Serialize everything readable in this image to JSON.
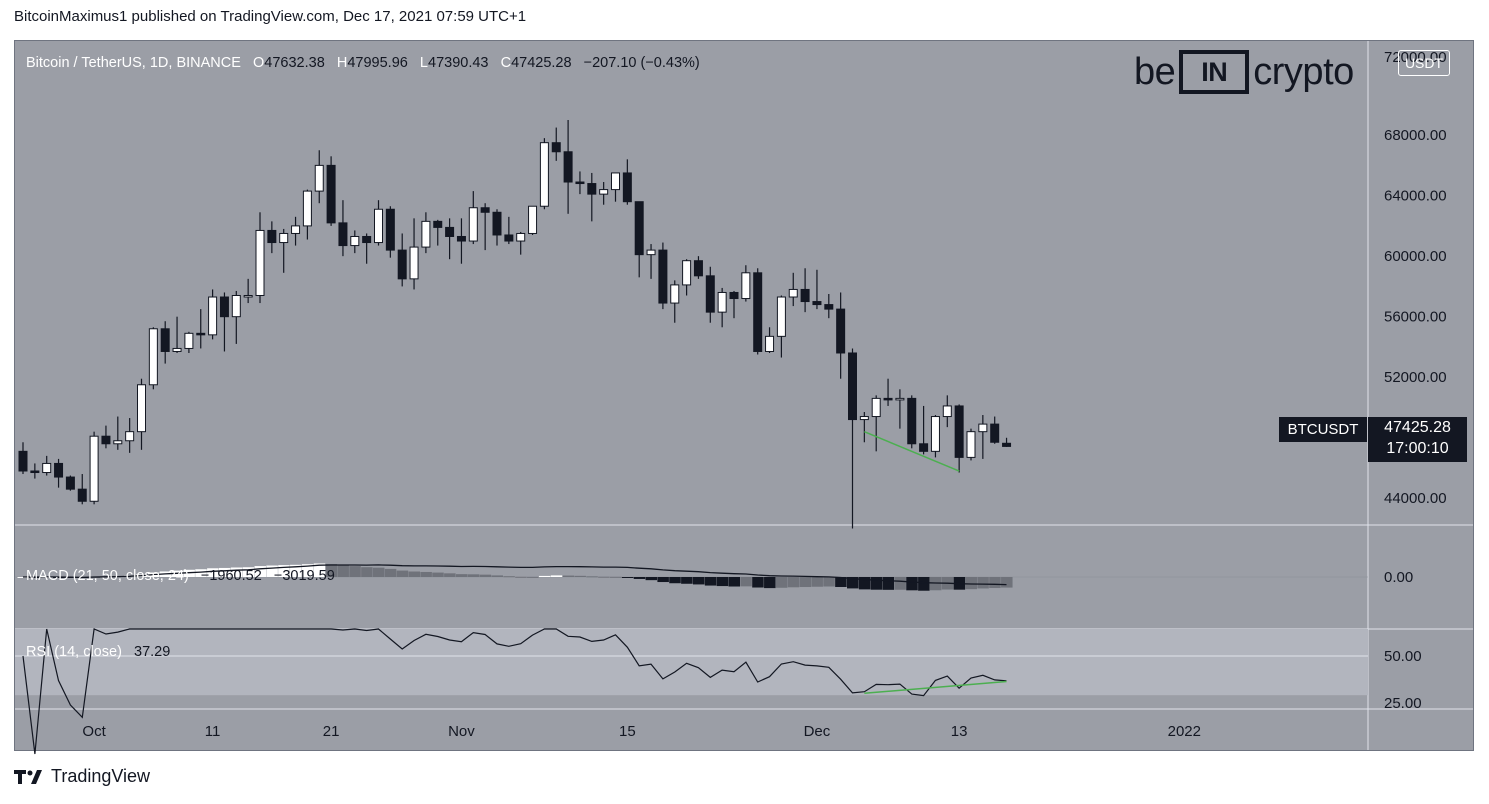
{
  "header": {
    "text": "BitcoinMaximus1 published on TradingView.com, Dec 17, 2021 07:59 UTC+1"
  },
  "legend": {
    "symbol": "Bitcoin / TetherUS, 1D, BINANCE",
    "o_label": "O",
    "o_value": "47632.38",
    "h_label": "H",
    "h_value": "47995.96",
    "l_label": "L",
    "l_value": "47390.43",
    "c_label": "C",
    "c_value": "47425.28",
    "change": "−207.10 (−0.43%)"
  },
  "watermark": {
    "left": "be",
    "mid": "IN",
    "right": "crypto"
  },
  "price_axis": {
    "unit": "USDT",
    "top_label": "72000.00",
    "labels": [
      "68000.00",
      "64000.00",
      "60000.00",
      "56000.00",
      "52000.00",
      "44000.00"
    ],
    "symbol_tag": "BTCUSDT",
    "last_price": "47425.28",
    "countdown": "17:00:10"
  },
  "macd": {
    "label": "MACD (21, 50, close, 24)",
    "v1": "−1960.52",
    "v2": "−3019.59",
    "axis_label": "0.00"
  },
  "rsi": {
    "label": "RSI (14, close)",
    "value": "37.29",
    "axis_labels": [
      "50.00",
      "25.00"
    ]
  },
  "time_axis": {
    "labels": [
      "Oct",
      "11",
      "21",
      "Nov",
      "15",
      "Dec",
      "13",
      "2022"
    ]
  },
  "footer": {
    "brand": "TradingView"
  },
  "colors": {
    "bg": "#9b9ea6",
    "up": "#ffffff",
    "down": "#131722",
    "support": "#4caf50",
    "rsi_band": "#b2b5be"
  },
  "chart_data": {
    "type": "candlestick",
    "title": "Bitcoin / TetherUS, 1D, BINANCE",
    "y_range": [
      42000,
      72000
    ],
    "x_range": [
      "2021-09-25",
      "2022-01-05"
    ],
    "candles": [
      {
        "d": "2021-09-25",
        "o": 47100,
        "h": 47700,
        "l": 45600,
        "c": 45800
      },
      {
        "d": "2021-09-26",
        "o": 45800,
        "h": 46300,
        "l": 45300,
        "c": 45700
      },
      {
        "d": "2021-09-27",
        "o": 45700,
        "h": 46800,
        "l": 45500,
        "c": 46300
      },
      {
        "d": "2021-09-28",
        "o": 46300,
        "h": 46600,
        "l": 44700,
        "c": 45400
      },
      {
        "d": "2021-09-29",
        "o": 45400,
        "h": 45500,
        "l": 44500,
        "c": 44600
      },
      {
        "d": "2021-09-30",
        "o": 44600,
        "h": 45600,
        "l": 43600,
        "c": 43800
      },
      {
        "d": "2021-10-01",
        "o": 43800,
        "h": 48400,
        "l": 43600,
        "c": 48100
      },
      {
        "d": "2021-10-02",
        "o": 48100,
        "h": 48800,
        "l": 47300,
        "c": 47600
      },
      {
        "d": "2021-10-03",
        "o": 47600,
        "h": 49400,
        "l": 47200,
        "c": 47800
      },
      {
        "d": "2021-10-04",
        "o": 47800,
        "h": 49300,
        "l": 47000,
        "c": 48400
      },
      {
        "d": "2021-10-05",
        "o": 48400,
        "h": 51900,
        "l": 47200,
        "c": 51500
      },
      {
        "d": "2021-10-06",
        "o": 51500,
        "h": 55300,
        "l": 51200,
        "c": 55200
      },
      {
        "d": "2021-10-07",
        "o": 55200,
        "h": 55700,
        "l": 52900,
        "c": 53700
      },
      {
        "d": "2021-10-08",
        "o": 53700,
        "h": 56000,
        "l": 53600,
        "c": 53900
      },
      {
        "d": "2021-10-09",
        "o": 53900,
        "h": 55000,
        "l": 53600,
        "c": 54900
      },
      {
        "d": "2021-10-10",
        "o": 54900,
        "h": 56500,
        "l": 53900,
        "c": 54800
      },
      {
        "d": "2021-10-11",
        "o": 54800,
        "h": 57800,
        "l": 54500,
        "c": 57300
      },
      {
        "d": "2021-10-12",
        "o": 57300,
        "h": 57600,
        "l": 53700,
        "c": 56000
      },
      {
        "d": "2021-10-13",
        "o": 56000,
        "h": 57700,
        "l": 54200,
        "c": 57400
      },
      {
        "d": "2021-10-14",
        "o": 57400,
        "h": 58500,
        "l": 56900,
        "c": 57400
      },
      {
        "d": "2021-10-15",
        "o": 57400,
        "h": 62900,
        "l": 56900,
        "c": 61700
      },
      {
        "d": "2021-10-16",
        "o": 61700,
        "h": 62300,
        "l": 60200,
        "c": 60900
      },
      {
        "d": "2021-10-17",
        "o": 60900,
        "h": 61800,
        "l": 58900,
        "c": 61500
      },
      {
        "d": "2021-10-18",
        "o": 61500,
        "h": 62600,
        "l": 60700,
        "c": 62000
      },
      {
        "d": "2021-10-19",
        "o": 62000,
        "h": 64400,
        "l": 61100,
        "c": 64300
      },
      {
        "d": "2021-10-20",
        "o": 64300,
        "h": 67000,
        "l": 63500,
        "c": 66000
      },
      {
        "d": "2021-10-21",
        "o": 66000,
        "h": 66600,
        "l": 62000,
        "c": 62200
      },
      {
        "d": "2021-10-22",
        "o": 62200,
        "h": 63700,
        "l": 60000,
        "c": 60700
      },
      {
        "d": "2021-10-23",
        "o": 60700,
        "h": 61700,
        "l": 60200,
        "c": 61300
      },
      {
        "d": "2021-10-24",
        "o": 61300,
        "h": 61500,
        "l": 59500,
        "c": 60900
      },
      {
        "d": "2021-10-25",
        "o": 60900,
        "h": 63700,
        "l": 60700,
        "c": 63100
      },
      {
        "d": "2021-10-26",
        "o": 63100,
        "h": 63300,
        "l": 59900,
        "c": 60400
      },
      {
        "d": "2021-10-27",
        "o": 60400,
        "h": 61500,
        "l": 58000,
        "c": 58500
      },
      {
        "d": "2021-10-28",
        "o": 58500,
        "h": 62500,
        "l": 57800,
        "c": 60600
      },
      {
        "d": "2021-10-29",
        "o": 60600,
        "h": 62900,
        "l": 60200,
        "c": 62300
      },
      {
        "d": "2021-10-30",
        "o": 62300,
        "h": 62400,
        "l": 60700,
        "c": 61900
      },
      {
        "d": "2021-10-31",
        "o": 61900,
        "h": 62500,
        "l": 59800,
        "c": 61300
      },
      {
        "d": "2021-11-01",
        "o": 61300,
        "h": 62500,
        "l": 59500,
        "c": 61000
      },
      {
        "d": "2021-11-02",
        "o": 61000,
        "h": 64300,
        "l": 60800,
        "c": 63200
      },
      {
        "d": "2021-11-03",
        "o": 63200,
        "h": 63500,
        "l": 60400,
        "c": 62900
      },
      {
        "d": "2021-11-04",
        "o": 62900,
        "h": 63100,
        "l": 60700,
        "c": 61400
      },
      {
        "d": "2021-11-05",
        "o": 61400,
        "h": 62600,
        "l": 60800,
        "c": 61000
      },
      {
        "d": "2021-11-06",
        "o": 61000,
        "h": 61600,
        "l": 60100,
        "c": 61500
      },
      {
        "d": "2021-11-07",
        "o": 61500,
        "h": 63300,
        "l": 61400,
        "c": 63300
      },
      {
        "d": "2021-11-08",
        "o": 63300,
        "h": 67800,
        "l": 63100,
        "c": 67500
      },
      {
        "d": "2021-11-09",
        "o": 67500,
        "h": 68500,
        "l": 66300,
        "c": 66900
      },
      {
        "d": "2021-11-10",
        "o": 66900,
        "h": 69000,
        "l": 62800,
        "c": 64900
      },
      {
        "d": "2021-11-11",
        "o": 64900,
        "h": 65600,
        "l": 64100,
        "c": 64800
      },
      {
        "d": "2021-11-12",
        "o": 64800,
        "h": 65500,
        "l": 62300,
        "c": 64100
      },
      {
        "d": "2021-11-13",
        "o": 64100,
        "h": 64900,
        "l": 63400,
        "c": 64400
      },
      {
        "d": "2021-11-14",
        "o": 64400,
        "h": 65500,
        "l": 63600,
        "c": 65500
      },
      {
        "d": "2021-11-15",
        "o": 65500,
        "h": 66400,
        "l": 63400,
        "c": 63600
      },
      {
        "d": "2021-11-16",
        "o": 63600,
        "h": 63600,
        "l": 58600,
        "c": 60100
      },
      {
        "d": "2021-11-17",
        "o": 60100,
        "h": 60800,
        "l": 58500,
        "c": 60400
      },
      {
        "d": "2021-11-18",
        "o": 60400,
        "h": 60900,
        "l": 56500,
        "c": 56900
      },
      {
        "d": "2021-11-19",
        "o": 56900,
        "h": 58400,
        "l": 55600,
        "c": 58100
      },
      {
        "d": "2021-11-20",
        "o": 58100,
        "h": 59800,
        "l": 57400,
        "c": 59700
      },
      {
        "d": "2021-11-21",
        "o": 59700,
        "h": 60000,
        "l": 58500,
        "c": 58700
      },
      {
        "d": "2021-11-22",
        "o": 58700,
        "h": 59300,
        "l": 55600,
        "c": 56300
      },
      {
        "d": "2021-11-23",
        "o": 56300,
        "h": 57900,
        "l": 55300,
        "c": 57600
      },
      {
        "d": "2021-11-24",
        "o": 57600,
        "h": 57700,
        "l": 55900,
        "c": 57200
      },
      {
        "d": "2021-11-25",
        "o": 57200,
        "h": 59400,
        "l": 57000,
        "c": 58900
      },
      {
        "d": "2021-11-26",
        "o": 58900,
        "h": 59200,
        "l": 53500,
        "c": 53700
      },
      {
        "d": "2021-11-27",
        "o": 53700,
        "h": 55300,
        "l": 53600,
        "c": 54700
      },
      {
        "d": "2021-11-28",
        "o": 54700,
        "h": 57400,
        "l": 53300,
        "c": 57300
      },
      {
        "d": "2021-11-29",
        "o": 57300,
        "h": 58900,
        "l": 56700,
        "c": 57800
      },
      {
        "d": "2021-11-30",
        "o": 57800,
        "h": 59200,
        "l": 56300,
        "c": 57000
      },
      {
        "d": "2021-12-01",
        "o": 57000,
        "h": 59100,
        "l": 56500,
        "c": 56800
      },
      {
        "d": "2021-12-02",
        "o": 56800,
        "h": 57500,
        "l": 55900,
        "c": 56500
      },
      {
        "d": "2021-12-03",
        "o": 56500,
        "h": 57600,
        "l": 51900,
        "c": 53600
      },
      {
        "d": "2021-12-04",
        "o": 53600,
        "h": 53900,
        "l": 42000,
        "c": 49200
      },
      {
        "d": "2021-12-05",
        "o": 49200,
        "h": 49700,
        "l": 47700,
        "c": 49400
      },
      {
        "d": "2021-12-06",
        "o": 49400,
        "h": 50800,
        "l": 47100,
        "c": 50600
      },
      {
        "d": "2021-12-07",
        "o": 50600,
        "h": 51900,
        "l": 50100,
        "c": 50500
      },
      {
        "d": "2021-12-08",
        "o": 50500,
        "h": 51200,
        "l": 48600,
        "c": 50600
      },
      {
        "d": "2021-12-09",
        "o": 50600,
        "h": 50800,
        "l": 47300,
        "c": 47600
      },
      {
        "d": "2021-12-10",
        "o": 47600,
        "h": 50100,
        "l": 46900,
        "c": 47100
      },
      {
        "d": "2021-12-11",
        "o": 47100,
        "h": 49500,
        "l": 46700,
        "c": 49400
      },
      {
        "d": "2021-12-12",
        "o": 49400,
        "h": 50800,
        "l": 48700,
        "c": 50100
      },
      {
        "d": "2021-12-13",
        "o": 50100,
        "h": 50200,
        "l": 45700,
        "c": 46700
      },
      {
        "d": "2021-12-14",
        "o": 46700,
        "h": 48600,
        "l": 46500,
        "c": 48400
      },
      {
        "d": "2021-12-15",
        "o": 48400,
        "h": 49500,
        "l": 46600,
        "c": 48900
      },
      {
        "d": "2021-12-16",
        "o": 48900,
        "h": 49400,
        "l": 47600,
        "c": 47700
      },
      {
        "d": "2021-12-17",
        "o": 47632.38,
        "h": 47995.96,
        "l": 47390.43,
        "c": 47425.28
      }
    ],
    "support_line": [
      {
        "d": "2021-12-05",
        "v": 48400
      },
      {
        "d": "2021-12-13",
        "v": 45800
      }
    ],
    "macd_histogram_hint": "positive Oct–Nov, negative from mid-Nov",
    "rsi_support": [
      {
        "d": "2021-12-05",
        "v": 31
      },
      {
        "d": "2021-12-17",
        "v": 37
      }
    ]
  }
}
